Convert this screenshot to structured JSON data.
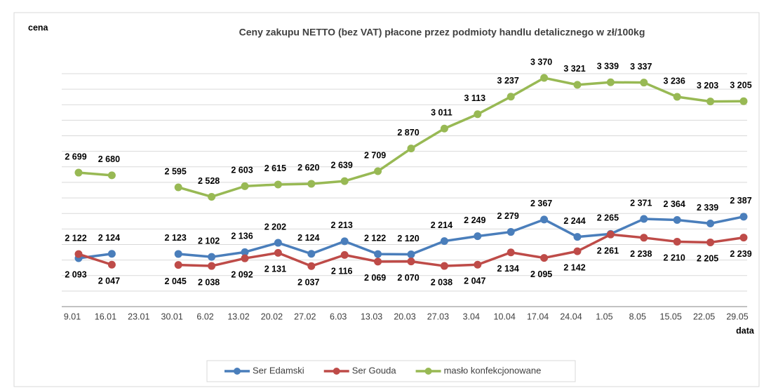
{
  "chart_data": {
    "type": "line",
    "title": "Ceny zakupu NETTO (bez VAT) płacone przez podmioty handlu detalicznego w zł/100kg",
    "y_label": "cena",
    "x_label": "data",
    "categories": [
      "9.01",
      "16.01",
      "23.01",
      "30.01",
      "6.02",
      "13.02",
      "20.02",
      "27.02",
      "6.03",
      "13.03",
      "20.03",
      "27.03",
      "3.04",
      "10.04",
      "17.04",
      "24.04",
      "1.05",
      "8.05",
      "15.05",
      "22.05",
      "29.05"
    ],
    "series": [
      {
        "name": "Ser Edamski",
        "color": "#4a7ebb",
        "values": [
          2093,
          2124,
          null,
          2123,
          2102,
          2136,
          2202,
          2124,
          2213,
          2122,
          2120,
          2214,
          2249,
          2279,
          2367,
          2244,
          2265,
          2371,
          2364,
          2339,
          2387
        ],
        "value_labels": [
          "2 093",
          "2 124",
          null,
          "2 123",
          "2 102",
          "2 136",
          "2 202",
          "2 124",
          "2 213",
          "2 122",
          "2 120",
          "2 214",
          "2 249",
          "2 279",
          "2 367",
          "2 244",
          "2 265",
          "2 371",
          "2 364",
          "2 339",
          "2 387"
        ]
      },
      {
        "name": "Ser Gouda",
        "color": "#be4b48",
        "values": [
          2122,
          2047,
          null,
          2045,
          2038,
          2092,
          2131,
          2037,
          2116,
          2069,
          2070,
          2038,
          2047,
          2134,
          2095,
          2142,
          2261,
          2238,
          2210,
          2205,
          2239
        ],
        "value_labels": [
          "2 122",
          "2 047",
          null,
          "2 045",
          "2 038",
          "2 092",
          "2 131",
          "2 037",
          "2 116",
          "2 069",
          "2 070",
          "2 038",
          "2 047",
          "2 134",
          "2 095",
          "2 142",
          "2 261",
          "2 238",
          "2 210",
          "2 205",
          "2 239"
        ]
      },
      {
        "name": "masło konfekcjonowane",
        "color": "#98b954",
        "values": [
          2699,
          2680,
          null,
          2595,
          2528,
          2603,
          2615,
          2620,
          2639,
          2709,
          2870,
          3011,
          3113,
          3237,
          3370,
          3321,
          3339,
          3337,
          3236,
          3203,
          3205
        ],
        "value_labels": [
          "2 699",
          "2 680",
          null,
          "2 595",
          "2 528",
          "2 603",
          "2 615",
          "2 620",
          "2 639",
          "2 709",
          "2 870",
          "3 011",
          "3 113",
          "3 237",
          "3 370",
          "3 321",
          "3 339",
          "3 337",
          "3 236",
          "3 203",
          "3 205"
        ]
      }
    ],
    "ylim": [
      1750,
      3400
    ],
    "yticks": [
      1750,
      1860,
      1970,
      2080,
      2190,
      2300,
      2410,
      2520,
      2630,
      2740,
      2850,
      2960,
      3070,
      3180,
      3290,
      3400
    ],
    "grid": true,
    "legend": "bottom"
  }
}
